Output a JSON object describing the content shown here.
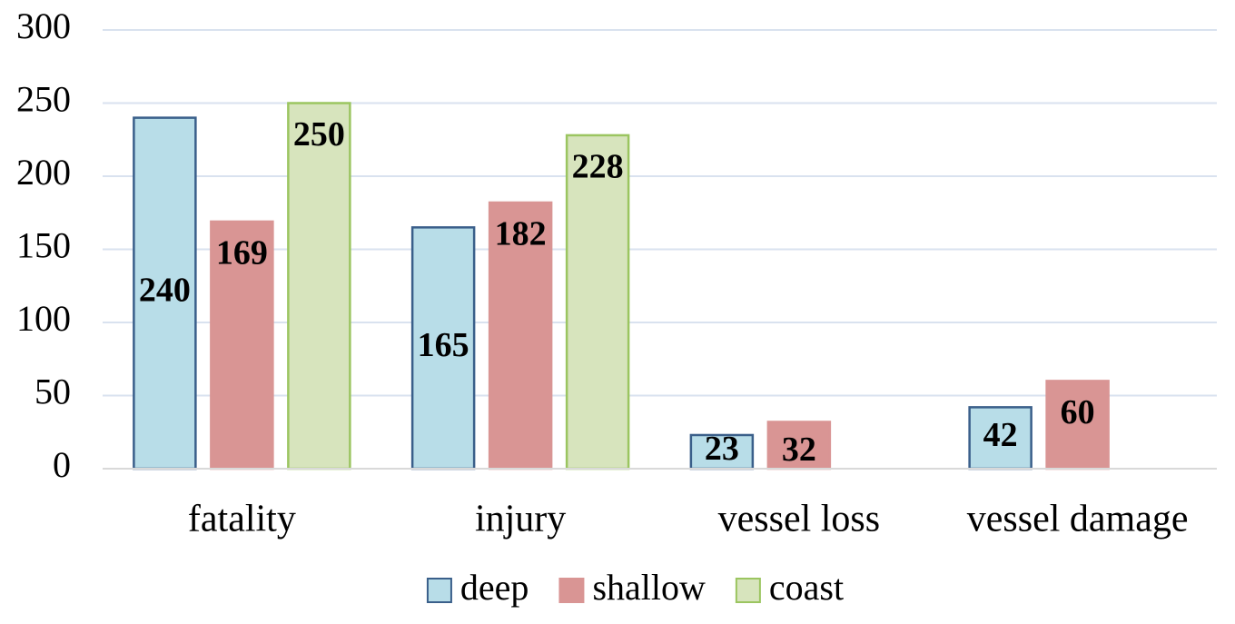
{
  "chart_data": {
    "type": "bar",
    "categories": [
      "fatality",
      "injury",
      "vessel loss",
      "vessel damage"
    ],
    "series": [
      {
        "name": "deep",
        "color": "#b8dde8",
        "edge": "#3a5f8a",
        "values": [
          240,
          165,
          23,
          42
        ]
      },
      {
        "name": "shallow",
        "color": "#d99594",
        "edge": "#d99594",
        "values": [
          169,
          182,
          32,
          60
        ]
      },
      {
        "name": "coast",
        "color": "#d7e4bd",
        "edge": "#9bc560",
        "values": [
          250,
          228,
          null,
          null
        ]
      }
    ],
    "ylim": [
      0,
      300
    ],
    "yticks": [
      0,
      50,
      100,
      150,
      200,
      250,
      300
    ],
    "grid": true
  }
}
